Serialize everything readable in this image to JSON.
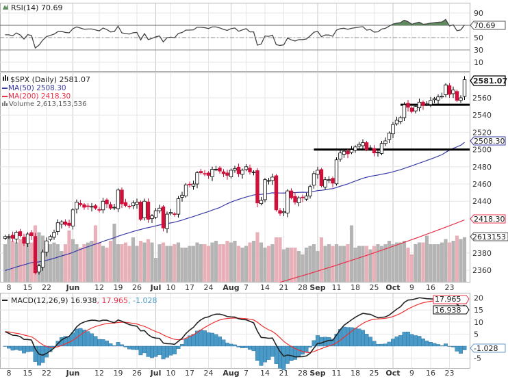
{
  "chart_data": {
    "type": "candlestick",
    "title": "$SPX (Daily) 2581.07",
    "symbol": "$SPX",
    "period": "Daily",
    "rsi": {
      "label": "RSI(14) 70.69",
      "last": "70.69",
      "levels": [
        "90",
        "50",
        "30",
        "10"
      ],
      "overbought": 70,
      "oversold": 30
    },
    "legend": {
      "price": "$SPX (Daily) 2581.07",
      "ma50": "MA(50) 2508.30",
      "ma200": "MA(200) 2418.30",
      "volume": "Volume 2,613,153,536"
    },
    "last_labels": {
      "price": "2581.07",
      "ma50": "2508.30",
      "ma200": "2418.30",
      "volume": "2613153"
    },
    "price_ticks": [
      "2560",
      "2540",
      "2520",
      "2500",
      "2480",
      "2460",
      "2440",
      "2380",
      "2360"
    ],
    "ylim": [
      2346,
      2588
    ],
    "support_lines": [
      {
        "price": 2500,
        "from_index": 82
      },
      {
        "price": 2552,
        "from_index": 105
      }
    ],
    "ma200_range": {
      "from_index": 73,
      "from_value": 2346,
      "to_value": 2418.3
    },
    "macd": {
      "label": "MACD(12,26,9)",
      "macd": "16.938",
      "signal": "17.965",
      "hist": "-1.028",
      "ticks": [
        "20",
        "15",
        "10",
        "5",
        "-5"
      ],
      "last_tags": {
        "signal": "17.965",
        "macd": "16.938",
        "hist": "-1.028"
      }
    },
    "x_ticks": [
      {
        "label": "8",
        "i": 1
      },
      {
        "label": "15",
        "i": 6
      },
      {
        "label": "22",
        "i": 11
      },
      {
        "label": "Jun",
        "i": 18,
        "month": true
      },
      {
        "label": "12",
        "i": 25
      },
      {
        "label": "19",
        "i": 30
      },
      {
        "label": "26",
        "i": 35
      },
      {
        "label": "Jul",
        "i": 40,
        "month": true
      },
      {
        "label": "10",
        "i": 44
      },
      {
        "label": "17",
        "i": 49
      },
      {
        "label": "24",
        "i": 54
      },
      {
        "label": "Aug",
        "i": 60,
        "month": true
      },
      {
        "label": "7",
        "i": 64
      },
      {
        "label": "14",
        "i": 69
      },
      {
        "label": "21",
        "i": 74
      },
      {
        "label": "28",
        "i": 79
      },
      {
        "label": "Sep",
        "i": 83,
        "month": true
      },
      {
        "label": "11",
        "i": 88
      },
      {
        "label": "18",
        "i": 93
      },
      {
        "label": "25",
        "i": 98
      },
      {
        "label": "Oct",
        "i": 103,
        "month": true
      },
      {
        "label": "9",
        "i": 108
      },
      {
        "label": "16",
        "i": 113
      },
      {
        "label": "23",
        "i": 118
      }
    ],
    "closes": [
      2399,
      2399,
      2397,
      2404,
      2400,
      2391,
      2402,
      2400,
      2357,
      2365,
      2381,
      2394,
      2399,
      2404,
      2415,
      2416,
      2413,
      2412,
      2430,
      2439,
      2436,
      2433,
      2434,
      2434,
      2432,
      2430,
      2440,
      2437,
      2432,
      2433,
      2453,
      2437,
      2435,
      2434,
      2438,
      2439,
      2419,
      2440,
      2419,
      2423,
      2429,
      2432,
      2409,
      2425,
      2427,
      2425,
      2443,
      2447,
      2459,
      2459,
      2460,
      2473,
      2473,
      2472,
      2470,
      2477,
      2477,
      2475,
      2472,
      2470,
      2476,
      2478,
      2472,
      2476,
      2480,
      2474,
      2474,
      2438,
      2441,
      2465,
      2464,
      2468,
      2430,
      2426,
      2428,
      2452,
      2444,
      2439,
      2444,
      2444,
      2446,
      2457,
      2472,
      2476,
      2458,
      2465,
      2465,
      2461,
      2488,
      2496,
      2498,
      2495,
      2500,
      2503,
      2506,
      2508,
      2500,
      2502,
      2496,
      2497,
      2507,
      2510,
      2519,
      2529,
      2534,
      2537,
      2552,
      2549,
      2544,
      2550,
      2555,
      2551,
      2553,
      2557,
      2559,
      2561,
      2562,
      2575,
      2564,
      2569,
      2557,
      2560,
      2581.07
    ],
    "volumes_billion": [
      2.2,
      2.6,
      2.4,
      2.3,
      2.5,
      2.2,
      2.4,
      2.3,
      3.3,
      2.9,
      2.7,
      2.1,
      2.2,
      2.3,
      2.2,
      1.8,
      2.2,
      3.0,
      2.5,
      2.2,
      2.0,
      2.2,
      2.3,
      2.4,
      3.3,
      2.3,
      2.1,
      2.0,
      2.4,
      3.4,
      2.2,
      2.2,
      2.3,
      2.1,
      2.6,
      2.1,
      2.4,
      2.3,
      2.5,
      2.3,
      1.4,
      2.2,
      2.3,
      2.1,
      2.1,
      2.2,
      2.3,
      2.0,
      2.0,
      2.1,
      2.1,
      2.3,
      2.2,
      2.2,
      2.1,
      2.3,
      2.4,
      2.2,
      2.2,
      2.4,
      2.3,
      2.4,
      2.1,
      2.0,
      2.1,
      2.3,
      2.4,
      2.9,
      2.3,
      2.0,
      2.1,
      2.2,
      2.6,
      2.6,
      1.9,
      2.0,
      2.0,
      2.0,
      1.8,
      1.6,
      2.0,
      2.1,
      2.2,
      1.8,
      2.6,
      2.1,
      2.2,
      2.1,
      2.2,
      2.1,
      2.1,
      2.2,
      3.3,
      2.0,
      2.1,
      2.1,
      2.1,
      1.9,
      2.1,
      2.2,
      2.1,
      2.2,
      2.4,
      2.2,
      2.3,
      2.3,
      2.4,
      2.0,
      1.6,
      2.2,
      2.3,
      2.3,
      2.7,
      2.2,
      2.2,
      2.2,
      2.3,
      2.5,
      2.3,
      2.4,
      2.7,
      2.5,
      2.61
    ]
  },
  "colors": {
    "up": "#000000",
    "down": "#d0103a",
    "ma50": "#3a3aa8",
    "ma200": "#e8304a",
    "vol_up": "#b4b4b4",
    "vol_down": "#e8b0b8",
    "hist": "#4a9ac8",
    "rsi_fill": "#5f8a5f"
  }
}
